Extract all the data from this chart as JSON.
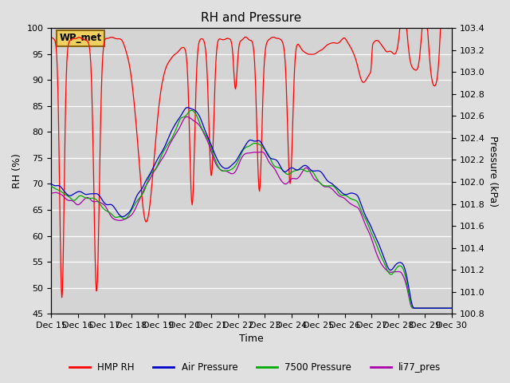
{
  "title": "RH and Pressure",
  "xlabel": "Time",
  "ylabel_left": "RH (%)",
  "ylabel_right": "Pressure (kPa)",
  "ylim_left": [
    45,
    100
  ],
  "ylim_right": [
    100.8,
    103.4
  ],
  "fig_bg": "#e0e0e0",
  "plot_bg": "#d4d4d4",
  "annotation_text": "WP_met",
  "annotation_bg": "#f0d060",
  "annotation_border": "#8B6914",
  "legend_entries": [
    "HMP RH",
    "Air Pressure",
    "7500 Pressure",
    "li77_pres"
  ],
  "series_colors": [
    "#ff0000",
    "#0000cc",
    "#00aa00",
    "#aa00aa"
  ],
  "xtick_labels": [
    "Dec 15",
    "Dec 16",
    "Dec 17",
    "Dec 18",
    "Dec 19",
    "Dec 20",
    "Dec 21",
    "Dec 22",
    "Dec 23",
    "Dec 24",
    "Dec 25",
    "Dec 26",
    "Dec 27",
    "Dec 28",
    "Dec 29",
    "Dec 30"
  ],
  "yticks_left": [
    45,
    50,
    55,
    60,
    65,
    70,
    75,
    80,
    85,
    90,
    95,
    100
  ],
  "yticks_right": [
    100.8,
    101.0,
    101.2,
    101.4,
    101.6,
    101.8,
    102.0,
    102.2,
    102.4,
    102.6,
    102.8,
    103.0,
    103.2,
    103.4
  ]
}
